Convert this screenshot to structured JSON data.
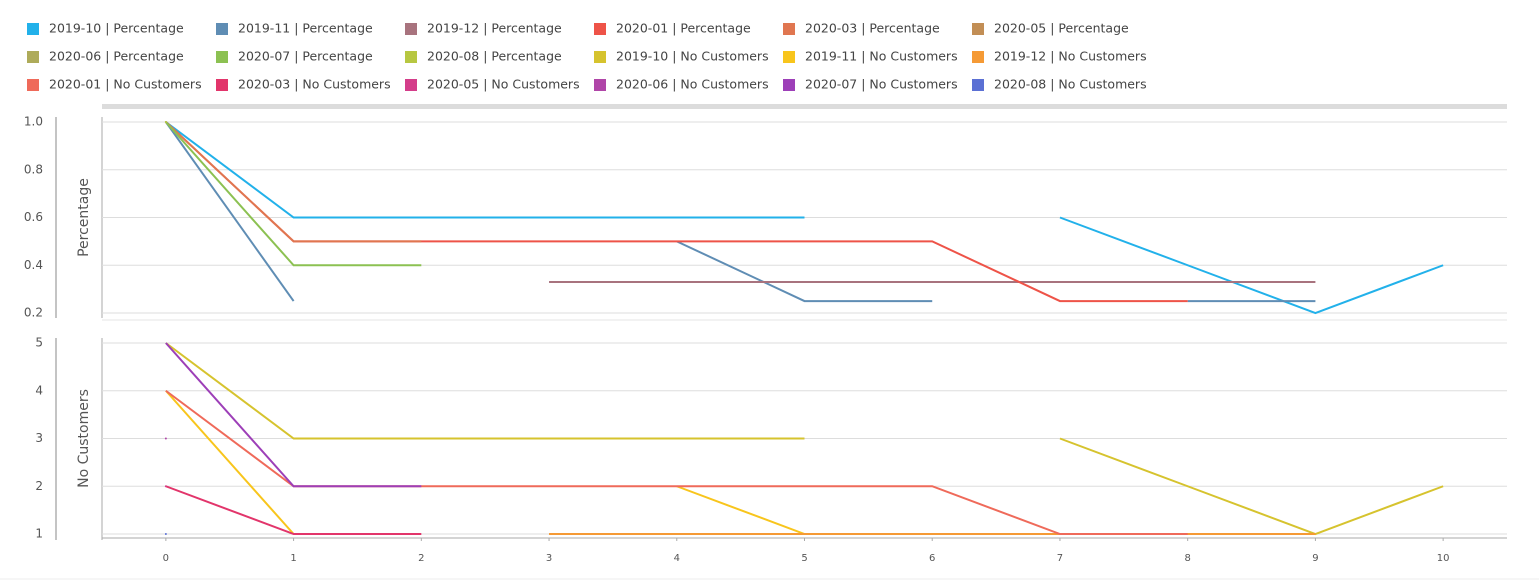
{
  "chart_data": [
    {
      "type": "line",
      "ylabel": "Percentage",
      "x": [
        0,
        1,
        2,
        3,
        4,
        5,
        6,
        7,
        8,
        9,
        10
      ],
      "xlim": [
        -0.5,
        10.5
      ],
      "ylim": [
        0.2,
        1.0
      ],
      "yticks": [
        {
          "value": 0.2,
          "label": "0.2"
        },
        {
          "value": 0.4,
          "label": "0.4"
        },
        {
          "value": 0.6,
          "label": "0.6"
        },
        {
          "value": 0.8,
          "label": "0.8"
        },
        {
          "value": 1.0,
          "label": "1.0"
        }
      ],
      "grid": true,
      "series": [
        {
          "name": "2019-10 | Percentage",
          "color": "#22b1ea",
          "values": [
            1,
            0.6,
            0.6,
            0.6,
            0.6,
            0.6,
            null,
            0.6,
            0.4,
            0.2,
            0.4
          ]
        },
        {
          "name": "2019-11 | Percentage",
          "color": "#5f8db4",
          "values": [
            1,
            0.25,
            null,
            null,
            0.5,
            0.25,
            0.25,
            null,
            0.25,
            0.25,
            null
          ]
        },
        {
          "name": "2019-12 | Percentage",
          "color": "#a8737e",
          "values": [
            null,
            null,
            null,
            0.33,
            0.33,
            0.33,
            0.33,
            0.33,
            0.33,
            0.33,
            null
          ]
        },
        {
          "name": "2020-01 | Percentage",
          "color": "#ee5348",
          "values": [
            1,
            0.5,
            0.5,
            0.5,
            0.5,
            0.5,
            0.5,
            0.25,
            0.25,
            null,
            null
          ]
        },
        {
          "name": "2020-03 | Percentage",
          "color": "#e07650",
          "values": [
            1,
            0.5,
            0.5,
            null,
            null,
            null,
            null,
            null,
            null,
            null,
            null
          ]
        },
        {
          "name": "2020-05 | Percentage",
          "color": "#c28e55",
          "values": [
            1,
            null,
            null,
            null,
            null,
            null,
            null,
            null,
            null,
            null,
            null
          ]
        },
        {
          "name": "2020-06 | Percentage",
          "color": "#aeab5a",
          "values": [
            1,
            null,
            null,
            null,
            null,
            null,
            null,
            null,
            null,
            null,
            null
          ]
        },
        {
          "name": "2020-07 | Percentage",
          "color": "#8cc152",
          "values": [
            1,
            0.4,
            0.4,
            null,
            null,
            null,
            null,
            null,
            null,
            null,
            null
          ]
        },
        {
          "name": "2020-08 | Percentage",
          "color": "#b7c741",
          "values": [
            1,
            null,
            null,
            null,
            null,
            null,
            null,
            null,
            null,
            null,
            null
          ]
        }
      ]
    },
    {
      "type": "line",
      "ylabel": "No Customers",
      "x": [
        0,
        1,
        2,
        3,
        4,
        5,
        6,
        7,
        8,
        9,
        10
      ],
      "xlim": [
        -0.5,
        10.5
      ],
      "xticks": [
        0,
        1,
        2,
        3,
        4,
        5,
        6,
        7,
        8,
        9,
        10
      ],
      "ylim": [
        1,
        5
      ],
      "yticks": [
        1,
        2,
        3,
        4,
        5
      ],
      "grid": true,
      "series": [
        {
          "name": "2019-10 | No Customers",
          "color": "#d6c32e",
          "values": [
            5,
            3,
            3,
            3,
            3,
            3,
            null,
            3,
            2,
            1,
            2
          ]
        },
        {
          "name": "2019-11 | No Customers",
          "color": "#f8c51c",
          "values": [
            4,
            1,
            null,
            null,
            2,
            1,
            1,
            1,
            1,
            1,
            null
          ]
        },
        {
          "name": "2019-12 | No Customers",
          "color": "#f59a35",
          "values": [
            null,
            null,
            null,
            1,
            1,
            1,
            1,
            1,
            1,
            1,
            null
          ]
        },
        {
          "name": "2020-01 | No Customers",
          "color": "#ef6a5a",
          "values": [
            4,
            2,
            2,
            2,
            2,
            2,
            2,
            1,
            1,
            null,
            null
          ]
        },
        {
          "name": "2020-03 | No Customers",
          "color": "#e2356b",
          "values": [
            2,
            1,
            1,
            null,
            null,
            null,
            null,
            null,
            null,
            null,
            null
          ]
        },
        {
          "name": "2020-05 | No Customers",
          "color": "#d43d8a",
          "values": [
            2,
            null,
            null,
            null,
            null,
            null,
            null,
            null,
            null,
            null,
            null
          ]
        },
        {
          "name": "2020-06 | No Customers",
          "color": "#b045a8",
          "values": [
            3,
            null,
            null,
            null,
            null,
            null,
            null,
            null,
            null,
            null,
            null
          ]
        },
        {
          "name": "2020-07 | No Customers",
          "color": "#9d3fb8",
          "values": [
            5,
            2,
            2,
            null,
            null,
            null,
            null,
            null,
            null,
            null,
            null
          ]
        },
        {
          "name": "2020-08 | No Customers",
          "color": "#5b70d4",
          "values": [
            1,
            null,
            null,
            null,
            null,
            null,
            null,
            null,
            null,
            null,
            null
          ]
        }
      ]
    }
  ]
}
